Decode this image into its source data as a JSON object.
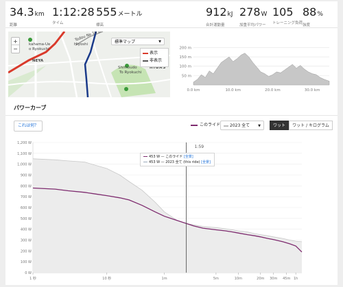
{
  "stats": [
    {
      "value": "34.3",
      "unit": "km",
      "label": "距離"
    },
    {
      "value": "1:12:28",
      "unit": "",
      "label": "タイム"
    },
    {
      "value": "555",
      "unit": "メートル",
      "label": "標高"
    },
    {
      "value": "912",
      "unit": "kJ",
      "label": "合計運動量"
    },
    {
      "value": "278",
      "unit": "W",
      "label": "加重平均パワー"
    },
    {
      "value": "105",
      "unit": "",
      "label": "トレーニング負荷"
    },
    {
      "value": "88",
      "unit": "%",
      "label": "強度"
    }
  ],
  "map": {
    "zoom_in": "+",
    "zoom_out": "−",
    "map_type_label": "標準マップ",
    "legend_show": "表示",
    "legend_hide": "非表示",
    "place_labels": [
      "Todou No.10 Line",
      "Hiyoshi",
      "kahama-Ue",
      "o Ryokuchi",
      "NEYA",
      "Shimoudo",
      "To Ryokuchi",
      "HIGAS"
    ],
    "colors": {
      "route": "#1a3a8a",
      "road": "#d93a2b",
      "park": "#c6e4b4"
    }
  },
  "elevation": {
    "y_ticks": [
      "200 m",
      "150 m",
      "100 m",
      "50 m"
    ],
    "x_ticks": [
      "0.0 km",
      "10.0 km",
      "20.0 km",
      "30.0 km"
    ],
    "x_range_km": [
      0,
      34.3
    ],
    "y_range_m": [
      0,
      220
    ],
    "profile": [
      [
        0,
        15
      ],
      [
        1,
        30
      ],
      [
        2,
        55
      ],
      [
        3,
        40
      ],
      [
        4,
        75
      ],
      [
        5,
        60
      ],
      [
        6,
        90
      ],
      [
        7,
        120
      ],
      [
        8,
        135
      ],
      [
        9,
        150
      ],
      [
        10,
        125
      ],
      [
        11,
        140
      ],
      [
        12,
        160
      ],
      [
        13,
        170
      ],
      [
        14,
        150
      ],
      [
        15,
        120
      ],
      [
        16,
        95
      ],
      [
        17,
        70
      ],
      [
        18,
        60
      ],
      [
        19,
        45
      ],
      [
        20,
        55
      ],
      [
        21,
        70
      ],
      [
        22,
        65
      ],
      [
        23,
        80
      ],
      [
        24,
        95
      ],
      [
        25,
        110
      ],
      [
        26,
        90
      ],
      [
        27,
        105
      ],
      [
        28,
        85
      ],
      [
        29,
        70
      ],
      [
        30,
        60
      ],
      [
        31,
        55
      ],
      [
        32,
        40
      ],
      [
        33,
        30
      ],
      [
        34.3,
        20
      ]
    ]
  },
  "power_curve": {
    "title": "パワーカーブ",
    "help_button": "これは何？",
    "legend_ride": "このライド",
    "year_select": "2023 全て",
    "toggle_watt": "ワット",
    "toggle_wkg": "ワット / キログラム",
    "cursor_label": "1:59",
    "tooltip": [
      {
        "text": "453 W — このライド",
        "link": "[全景]"
      },
      {
        "text": "453 W — 2023 全て (this ride)",
        "link": "[全景]"
      }
    ],
    "colors": {
      "ride": "#7d2a6e",
      "best": "#c8c8c8",
      "best_fill": "#ececec"
    }
  },
  "chart_data": {
    "type": "line",
    "title": "パワーカーブ",
    "xlabel": "",
    "ylabel": "",
    "y_ticks": [
      "1,200 W",
      "1,100 W",
      "1,000 W",
      "900 W",
      "800 W",
      "700 W",
      "600 W",
      "500 W",
      "400 W",
      "300 W",
      "200 W",
      "100 W",
      "0 W"
    ],
    "x_ticks": [
      {
        "label": "1 秒",
        "seconds": 1
      },
      {
        "label": "10 秒",
        "seconds": 10
      },
      {
        "label": "1m",
        "seconds": 60
      },
      {
        "label": "5m",
        "seconds": 300
      },
      {
        "label": "10m",
        "seconds": 600
      },
      {
        "label": "20m",
        "seconds": 1200
      },
      {
        "label": "30m",
        "seconds": 1800
      },
      {
        "label": "45m",
        "seconds": 2700
      },
      {
        "label": "1h",
        "seconds": 3600
      }
    ],
    "ylim": [
      0,
      1200
    ],
    "xlim_seconds": [
      1,
      4348
    ],
    "x_scale": "log",
    "series": [
      {
        "name": "このライド",
        "x": [
          1,
          2,
          3,
          5,
          7,
          10,
          15,
          20,
          30,
          45,
          60,
          90,
          119,
          150,
          200,
          300,
          400,
          500,
          600,
          800,
          1000,
          1200,
          1500,
          1800,
          2400,
          3000,
          3600,
          4348
        ],
        "y": [
          780,
          770,
          755,
          740,
          725,
          710,
          690,
          670,
          620,
          560,
          520,
          480,
          453,
          430,
          410,
          395,
          385,
          375,
          365,
          350,
          340,
          330,
          315,
          305,
          285,
          265,
          245,
          190
        ]
      },
      {
        "name": "2023 全て",
        "x": [
          1,
          2,
          3,
          5,
          7,
          10,
          15,
          20,
          30,
          45,
          60,
          90,
          119,
          150,
          200,
          300,
          400,
          500,
          600,
          800,
          1000,
          1200,
          1500,
          1800,
          2400,
          3000,
          3600,
          4348
        ],
        "y": [
          1050,
          1040,
          1030,
          1020,
          990,
          960,
          900,
          840,
          760,
          650,
          560,
          480,
          453,
          440,
          425,
          415,
          405,
          395,
          385,
          375,
          360,
          350,
          340,
          330,
          315,
          300,
          290,
          285
        ]
      }
    ]
  }
}
